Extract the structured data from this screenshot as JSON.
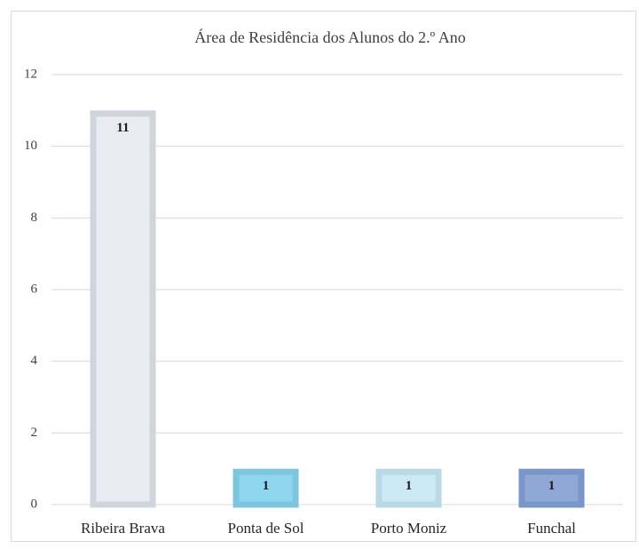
{
  "chart_data": {
    "type": "bar",
    "title": "Área de Residência dos Alunos do 2.º Ano",
    "categories": [
      "Ribeira Brava",
      "Ponta de Sol",
      "Porto Moniz",
      "Funchal"
    ],
    "values": [
      11,
      1,
      1,
      1
    ],
    "colors": [
      "#e9ecf2",
      "#8fd6f0",
      "#cceaf6",
      "#8fa8d6"
    ],
    "edge_colors": [
      "#d0d4db",
      "#7ec5e0",
      "#b9d9e6",
      "#7a95c7"
    ],
    "ylim": [
      0,
      12
    ],
    "yticks": [
      0,
      2,
      4,
      6,
      8,
      10,
      12
    ],
    "grid": true
  }
}
